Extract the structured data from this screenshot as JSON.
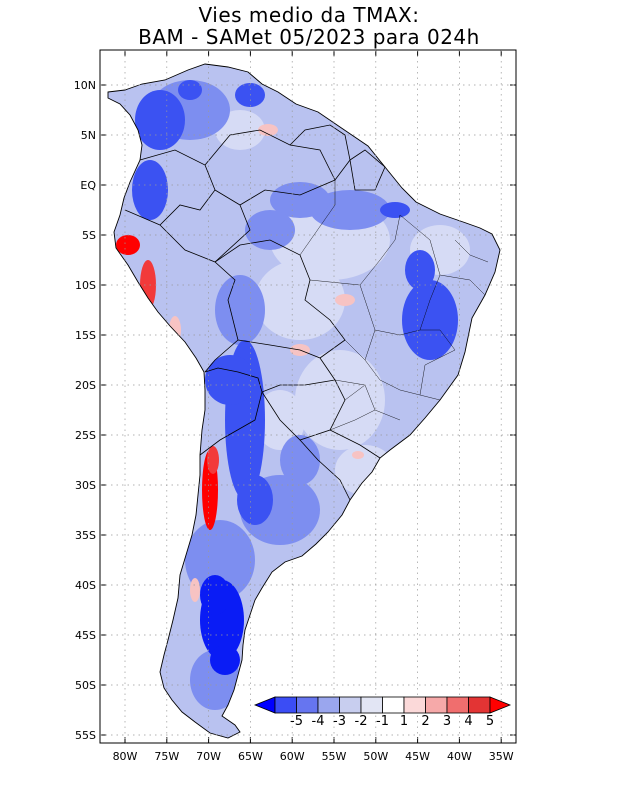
{
  "title_line1": "Vies medio da TMAX:",
  "title_line2": "BAM - SAMet 05/2023  para 024h",
  "lat_labels": [
    "10N",
    "5N",
    "EQ",
    "5S",
    "10S",
    "15S",
    "20S",
    "25S",
    "30S",
    "35S",
    "40S",
    "45S",
    "50S",
    "55S"
  ],
  "lon_labels": [
    "80W",
    "75W",
    "70W",
    "65W",
    "60W",
    "55W",
    "50W",
    "45W",
    "40W",
    "35W"
  ],
  "colorbar": {
    "labels": [
      "-5",
      "-4",
      "-3",
      "-2",
      "-1",
      "1",
      "2",
      "3",
      "4",
      "5"
    ],
    "colors": [
      "#0000ff",
      "#3b4df5",
      "#6675f0",
      "#9aa6ee",
      "#c8ceef",
      "#e2e5f4",
      "#ffffff",
      "#fbd9d9",
      "#f6a9a9",
      "#f06e6e",
      "#e33434",
      "#ff0000"
    ]
  },
  "map_colors": {
    "land_base": "#b9c2f0",
    "light_blue": "#d6dbf5",
    "mid_blue": "#7d8ef0",
    "strong_blue": "#3b52f2",
    "deep_blue": "#0a1cf5",
    "light_red": "#f7c3c3",
    "red": "#f23a3a",
    "bright_red": "#ff0000",
    "border": "#000000"
  }
}
